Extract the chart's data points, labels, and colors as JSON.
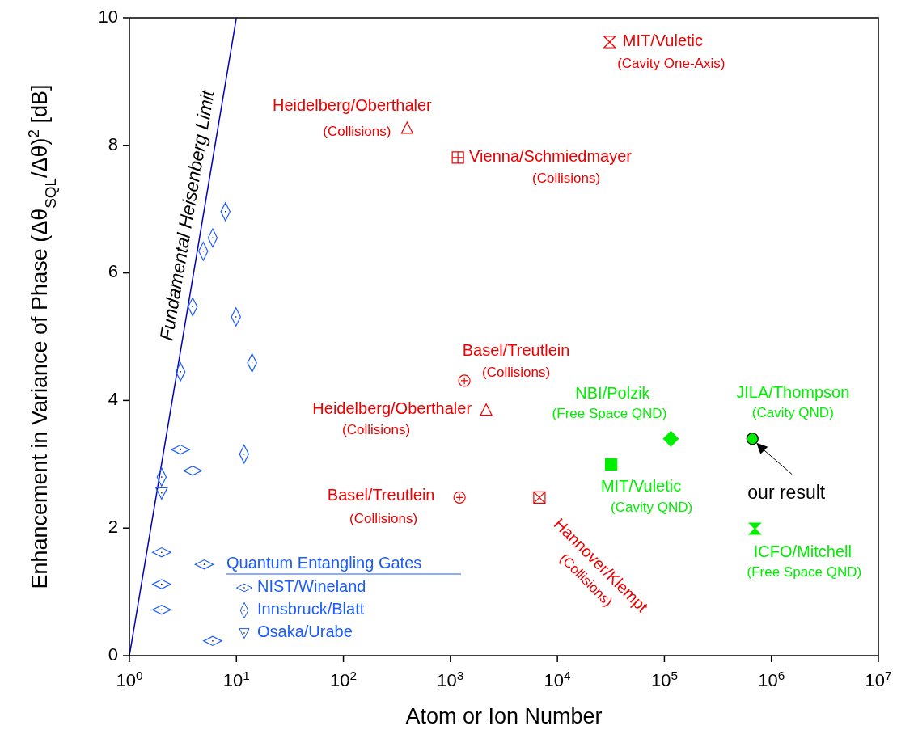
{
  "chart_data": {
    "type": "scatter",
    "xlabel": "Atom or Ion Number",
    "ylabel": "Enhancement in Variance of Phase (Δθ$_{SQL}$/Δθ)$^{2}$ [dB]",
    "log": "x",
    "xlim": [
      1,
      10000000
    ],
    "ylim": [
      0,
      10
    ],
    "xticks": [
      {
        "value": 1,
        "label": "10$^{0}$"
      },
      {
        "value": 10,
        "label": "10$^{1}$"
      },
      {
        "value": 100,
        "label": "10$^{2}$"
      },
      {
        "value": 1000,
        "label": "10$^{3}$"
      },
      {
        "value": 10000,
        "label": "10$^{4}$"
      },
      {
        "value": 100000,
        "label": "10$^{5}$"
      },
      {
        "value": 1000000,
        "label": "10$^{6}$"
      },
      {
        "value": 10000000,
        "label": "10$^{7}$"
      }
    ],
    "yticks": [
      0,
      2,
      4,
      6,
      8,
      10
    ],
    "grid": false,
    "legend": "bottom left",
    "legend_title": "Quantum Entangling Gates",
    "annotations": [
      "our result"
    ],
    "series": [
      {
        "type": "line",
        "name": "Fundamental Heisenberg Limit",
        "color": "#0000c0",
        "x": [
          1,
          10
        ],
        "values": [
          0,
          10
        ],
        "line_style": "solid"
      },
      {
        "name": "NIST/Wineland",
        "color": "#1a5cff",
        "marker": "diamond-wide",
        "x": [
          3,
          3.9,
          2,
          5,
          2,
          2,
          6
        ],
        "values": [
          3.23,
          2.9,
          1.62,
          1.43,
          1.12,
          0.72,
          0.23
        ]
      },
      {
        "name": "Innsbruck/Blatt",
        "color": "#1a5cff",
        "marker": "diamond-tall",
        "x": [
          7.9,
          4.9,
          6,
          3.9,
          9.9,
          14,
          3,
          11.8,
          2
        ],
        "values": [
          6.96,
          6.34,
          6.55,
          5.47,
          5.31,
          4.59,
          4.45,
          3.16,
          2.8
        ]
      },
      {
        "name": "Osaka/Urabe",
        "color": "#1a5cff",
        "marker": "triangle-down",
        "x": [
          2
        ],
        "values": [
          2.55
        ]
      },
      {
        "name": "MIT/Vuletic\n(Cavity One-Axis)",
        "color": "#ee0000",
        "x": [
          30800
        ],
        "values": [
          9.62
        ]
      },
      {
        "name": "Heidelberg/Oberthaler\n(Collisions)",
        "color": "#ee0000",
        "marker": "triangle",
        "x": [
          394
        ],
        "values": [
          8.25
        ]
      },
      {
        "name": "Vienna/Schmiedmayer\n(Collisions)",
        "color": "#ee0000",
        "x": [
          1175
        ],
        "values": [
          7.81
        ]
      },
      {
        "name": "Basel/Treutlein\n(Collisions)",
        "color": "#ee0000",
        "x": [
          1350
        ],
        "values": [
          4.31
        ]
      },
      {
        "name": "Heidelberg/Oberthaler\n(Collisions)",
        "color": "#ee0000",
        "marker": "triangle",
        "x": [
          2160
        ],
        "values": [
          3.83
        ]
      },
      {
        "name": "Basel/Treutlein\n(Collisions)",
        "color": "#ee0000",
        "x": [
          1217
        ],
        "values": [
          2.48
        ]
      },
      {
        "name": "Hannover/Klempt\n(Collisions)",
        "color": "#ee0000",
        "x": [
          6790
        ],
        "values": [
          2.48
        ]
      },
      {
        "name": "MIT/Vuletic\n(Cavity QND)",
        "color": "#00ee00",
        "marker": "square",
        "x": [
          31800
        ],
        "values": [
          3.0
        ]
      },
      {
        "name": "NBI/Polzik\n(Free Space QND)",
        "color": "#00ee00",
        "marker": "diamond",
        "x": [
          115000
        ],
        "values": [
          3.4
        ]
      },
      {
        "name": "JILA/Thompson\n(Cavity QND)",
        "color": "#00ee00",
        "marker": "circle",
        "x": [
          665000
        ],
        "values": [
          3.4
        ]
      },
      {
        "name": "ICFO/Mitchell\n(Free Space QND)",
        "color": "#00ee00",
        "x": [
          702000
        ],
        "values": [
          1.99
        ]
      }
    ]
  }
}
